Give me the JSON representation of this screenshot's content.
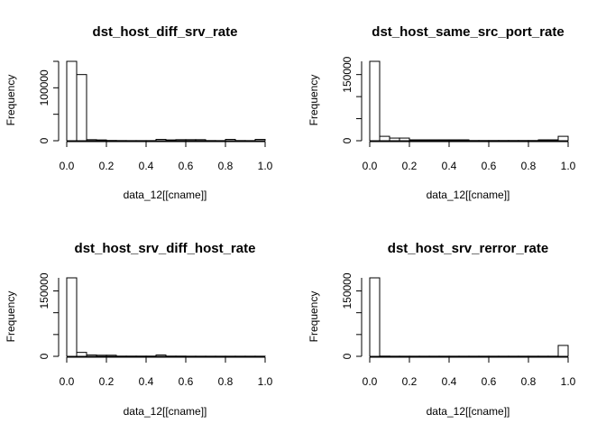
{
  "chart_data": [
    {
      "type": "histogram",
      "title": "dst_host_diff_srv_rate",
      "xlabel": "data_12[[cname]]",
      "ylabel": "Frequency",
      "xlim": [
        0,
        1
      ],
      "ylim": [
        0,
        150000
      ],
      "xticks": [
        "0.0",
        "0.2",
        "0.4",
        "0.6",
        "0.8",
        "1.0"
      ],
      "yticks": [
        {
          "v": 0,
          "t": "0"
        },
        {
          "v": 100000,
          "t": "100000"
        }
      ],
      "bins": [
        0,
        0.05,
        0.1,
        0.15,
        0.2,
        0.25,
        0.3,
        0.35,
        0.4,
        0.45,
        0.5,
        0.55,
        0.6,
        0.65,
        0.7,
        0.75,
        0.8,
        0.85,
        0.9,
        0.95,
        1.0
      ],
      "values": [
        150000,
        125000,
        2000,
        1500,
        500,
        300,
        200,
        200,
        200,
        2500,
        1500,
        2000,
        2000,
        2000,
        300,
        200,
        2500,
        300,
        200,
        2500
      ]
    },
    {
      "type": "histogram",
      "title": "dst_host_same_src_port_rate",
      "xlabel": "data_12[[cname]]",
      "ylabel": "Frequency",
      "xlim": [
        0,
        1
      ],
      "ylim": [
        0,
        180000
      ],
      "xticks": [
        "0.0",
        "0.2",
        "0.4",
        "0.6",
        "0.8",
        "1.0"
      ],
      "yticks": [
        {
          "v": 0,
          "t": "0"
        },
        {
          "v": 150000,
          "t": "150000"
        }
      ],
      "bins": [
        0,
        0.05,
        0.1,
        0.15,
        0.2,
        0.25,
        0.3,
        0.35,
        0.4,
        0.45,
        0.5,
        0.55,
        0.6,
        0.65,
        0.7,
        0.75,
        0.8,
        0.85,
        0.9,
        0.95,
        1.0
      ],
      "values": [
        180000,
        10000,
        6000,
        6000,
        2000,
        2000,
        2000,
        2000,
        2000,
        2000,
        500,
        500,
        500,
        500,
        500,
        500,
        500,
        2000,
        2000,
        10000
      ]
    },
    {
      "type": "histogram",
      "title": "dst_host_srv_diff_host_rate",
      "xlabel": "data_12[[cname]]",
      "ylabel": "Frequency",
      "xlim": [
        0,
        1
      ],
      "ylim": [
        0,
        180000
      ],
      "xticks": [
        "0.0",
        "0.2",
        "0.4",
        "0.6",
        "0.8",
        "1.0"
      ],
      "yticks": [
        {
          "v": 0,
          "t": "0"
        },
        {
          "v": 150000,
          "t": "150000"
        }
      ],
      "bins": [
        0,
        0.05,
        0.1,
        0.15,
        0.2,
        0.25,
        0.3,
        0.35,
        0.4,
        0.45,
        0.5,
        0.55,
        0.6,
        0.65,
        0.7,
        0.75,
        0.8,
        0.85,
        0.9,
        0.95,
        1.0
      ],
      "values": [
        180000,
        9000,
        3000,
        2500,
        2500,
        500,
        500,
        500,
        500,
        3000,
        500,
        500,
        300,
        300,
        300,
        300,
        300,
        300,
        300,
        300
      ]
    },
    {
      "type": "histogram",
      "title": "dst_host_srv_rerror_rate",
      "xlabel": "data_12[[cname]]",
      "ylabel": "Frequency",
      "xlim": [
        0,
        1
      ],
      "ylim": [
        0,
        180000
      ],
      "xticks": [
        "0.0",
        "0.2",
        "0.4",
        "0.6",
        "0.8",
        "1.0"
      ],
      "yticks": [
        {
          "v": 0,
          "t": "0"
        },
        {
          "v": 150000,
          "t": "150000"
        }
      ],
      "bins": [
        0,
        0.05,
        0.1,
        0.15,
        0.2,
        0.25,
        0.3,
        0.35,
        0.4,
        0.45,
        0.5,
        0.55,
        0.6,
        0.65,
        0.7,
        0.75,
        0.8,
        0.85,
        0.9,
        0.95,
        1.0
      ],
      "values": [
        180000,
        500,
        300,
        300,
        300,
        300,
        300,
        300,
        300,
        300,
        300,
        300,
        300,
        300,
        300,
        300,
        300,
        300,
        300,
        25000
      ]
    }
  ]
}
